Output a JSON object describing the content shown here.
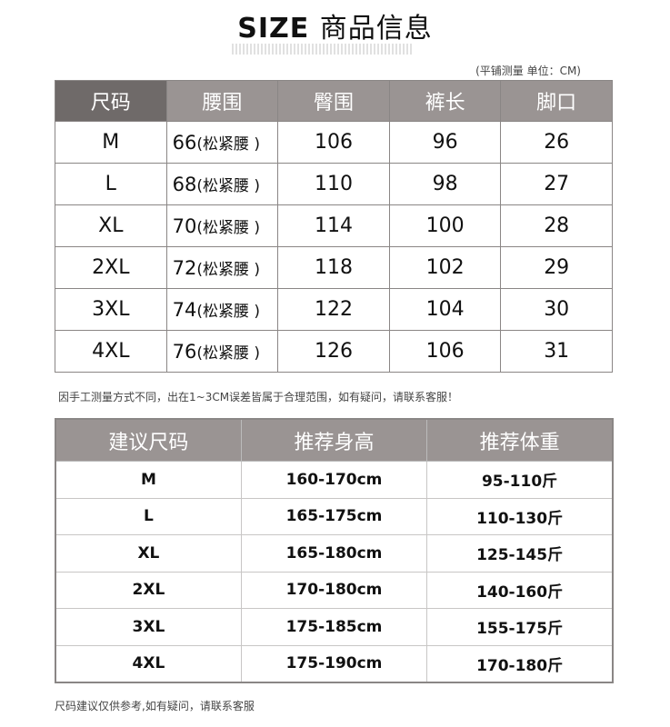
{
  "header": {
    "title_en": "SIZE",
    "title_cn": "商品信息",
    "unit_note": "(平铺测量 单位：CM)"
  },
  "size_table": {
    "headers": [
      "尺码",
      "腰围",
      "臀围",
      "裤长",
      "脚口"
    ],
    "rows": [
      [
        "M",
        "66",
        "(松紧腰 )",
        "106",
        "96",
        "26"
      ],
      [
        "L",
        "68",
        "(松紧腰 )",
        "110",
        "98",
        "27"
      ],
      [
        "XL",
        "70",
        "(松紧腰 )",
        "114",
        "100",
        "28"
      ],
      [
        "2XL",
        "72",
        "(松紧腰 )",
        "118",
        "102",
        "29"
      ],
      [
        "3XL",
        "74",
        "(松紧腰 )",
        "122",
        "104",
        "30"
      ],
      [
        "4XL",
        "76",
        "(松紧腰 )",
        "126",
        "106",
        "31"
      ]
    ]
  },
  "measure_note": "因手工测量方式不同，出在1~3CM误差皆属于合理范围，如有疑问，请联系客服！",
  "recommend_table": {
    "headers": [
      "建议尺码",
      "推荐身高",
      "推荐体重"
    ],
    "rows": [
      [
        "M",
        "160-170cm",
        "95-110斤"
      ],
      [
        "L",
        "165-175cm",
        "110-130斤"
      ],
      [
        "XL",
        "165-180cm",
        "125-145斤"
      ],
      [
        "2XL",
        "170-180cm",
        "140-160斤"
      ],
      [
        "3XL",
        "175-185cm",
        "155-175斤"
      ],
      [
        "4XL",
        "175-190cm",
        "170-180斤"
      ]
    ]
  },
  "footer_note": "尺码建议仅供参考,如有疑问，请联系客服"
}
